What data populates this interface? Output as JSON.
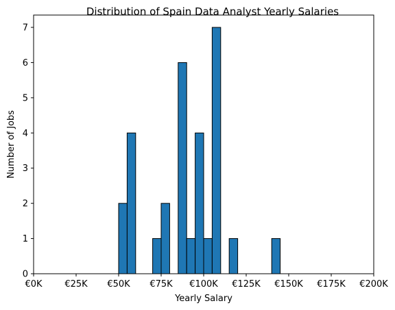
{
  "chart_data": {
    "type": "bar",
    "title": "Distribution of Spain Data Analyst Yearly Salaries",
    "xlabel": "Yearly Salary",
    "ylabel": "Number of Jobs",
    "xlim": [
      0,
      200000
    ],
    "ylim": [
      0,
      7.35
    ],
    "bin_width": 5000,
    "x_ticks": [
      0,
      25000,
      50000,
      75000,
      100000,
      125000,
      150000,
      175000,
      200000
    ],
    "x_tick_labels": [
      "€0K",
      "€25K",
      "€50K",
      "€75K",
      "€100K",
      "€125K",
      "€150K",
      "€175K",
      "€200K"
    ],
    "y_ticks": [
      0,
      1,
      2,
      3,
      4,
      5,
      6,
      7
    ],
    "y_tick_labels": [
      "0",
      "1",
      "2",
      "3",
      "4",
      "5",
      "6",
      "7"
    ],
    "bar_color": "#1f77b4",
    "edge_color": "#000000",
    "bins": [
      {
        "x0": 50000,
        "x1": 55000,
        "count": 2
      },
      {
        "x0": 55000,
        "x1": 60000,
        "count": 4
      },
      {
        "x0": 60000,
        "x1": 65000,
        "count": 0
      },
      {
        "x0": 65000,
        "x1": 70000,
        "count": 0
      },
      {
        "x0": 70000,
        "x1": 75000,
        "count": 1
      },
      {
        "x0": 75000,
        "x1": 80000,
        "count": 2
      },
      {
        "x0": 80000,
        "x1": 85000,
        "count": 0
      },
      {
        "x0": 85000,
        "x1": 90000,
        "count": 6
      },
      {
        "x0": 90000,
        "x1": 95000,
        "count": 1
      },
      {
        "x0": 95000,
        "x1": 100000,
        "count": 4
      },
      {
        "x0": 100000,
        "x1": 105000,
        "count": 1
      },
      {
        "x0": 105000,
        "x1": 110000,
        "count": 7
      },
      {
        "x0": 110000,
        "x1": 115000,
        "count": 0
      },
      {
        "x0": 115000,
        "x1": 120000,
        "count": 1
      },
      {
        "x0": 120000,
        "x1": 125000,
        "count": 0
      },
      {
        "x0": 125000,
        "x1": 130000,
        "count": 0
      },
      {
        "x0": 130000,
        "x1": 135000,
        "count": 0
      },
      {
        "x0": 135000,
        "x1": 140000,
        "count": 0
      },
      {
        "x0": 140000,
        "x1": 145000,
        "count": 1
      }
    ]
  }
}
